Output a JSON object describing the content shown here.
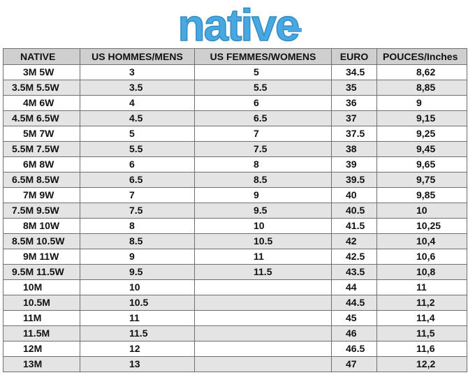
{
  "logo": {
    "text": "native",
    "color": "#4aa8e0"
  },
  "table": {
    "headers": [
      "NATIVE",
      "US HOMMES/MENS",
      "US FEMMES/WOMENS",
      "EURO",
      "POUCES/Inches"
    ],
    "rows": [
      [
        "3M 5W",
        "3",
        "5",
        "34.5",
        "8,62"
      ],
      [
        "3.5M 5.5W",
        "3.5",
        "5.5",
        "35",
        "8,85"
      ],
      [
        "4M 6W",
        "4",
        "6",
        "36",
        "9"
      ],
      [
        "4.5M 6.5W",
        "4.5",
        "6.5",
        "37",
        "9,15"
      ],
      [
        "5M 7W",
        "5",
        "7",
        "37.5",
        "9,25"
      ],
      [
        "5.5M 7.5W",
        "5.5",
        "7.5",
        "38",
        "9,45"
      ],
      [
        "6M 8W",
        "6",
        "8",
        "39",
        "9,65"
      ],
      [
        "6.5M 8.5W",
        "6.5",
        "8.5",
        "39.5",
        "9,75"
      ],
      [
        "7M 9W",
        "7",
        "9",
        "40",
        "9,85"
      ],
      [
        "7.5M 9.5W",
        "7.5",
        "9.5",
        "40.5",
        "10"
      ],
      [
        "8M 10W",
        "8",
        "10",
        "41.5",
        "10,25"
      ],
      [
        "8.5M 10.5W",
        "8.5",
        "10.5",
        "42",
        "10,4"
      ],
      [
        "9M 11W",
        "9",
        "11",
        "42.5",
        "10,6"
      ],
      [
        "9.5M 11.5W",
        "9.5",
        "11.5",
        "43.5",
        "10,8"
      ],
      [
        "10M",
        "10",
        "",
        "44",
        "11"
      ],
      [
        "10.5M",
        "10.5",
        "",
        "44.5",
        "11,2"
      ],
      [
        "11M",
        "11",
        "",
        "45",
        "11,4"
      ],
      [
        "11.5M",
        "11.5",
        "",
        "46",
        "11,5"
      ],
      [
        "12M",
        "12",
        "",
        "46.5",
        "11,6"
      ],
      [
        "13M",
        "13",
        "",
        "47",
        "12,2"
      ]
    ]
  }
}
